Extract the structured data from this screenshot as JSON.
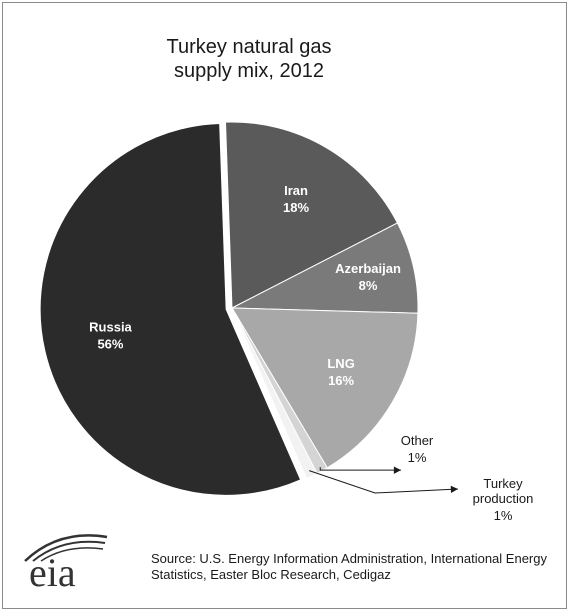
{
  "chart_data": {
    "type": "pie",
    "title_lines": [
      "Turkey natural gas",
      "supply mix, 2012"
    ],
    "slices": [
      {
        "label": "Iran",
        "value": 18,
        "value_label": "18%",
        "color": "#5a5a5a"
      },
      {
        "label": "Azerbaijan",
        "value": 8,
        "value_label": "8%",
        "color": "#7a7a7a"
      },
      {
        "label": "LNG",
        "value": 16,
        "value_label": "16%",
        "color": "#a8a8a8"
      },
      {
        "label": "Other",
        "value": 1,
        "value_label": "1%",
        "color": "#d4d4d4"
      },
      {
        "label": "Turkey production",
        "value": 1,
        "value_label": "1%",
        "color": "#f2f2f2"
      },
      {
        "label": "Russia",
        "value": 56,
        "value_label": "56%",
        "color": "#2b2b2b"
      }
    ]
  },
  "source": "Source: U.S. Energy Information Administration, International Energy Statistics, Easter Bloc Research, Cedigaz",
  "logo_text": "eia"
}
